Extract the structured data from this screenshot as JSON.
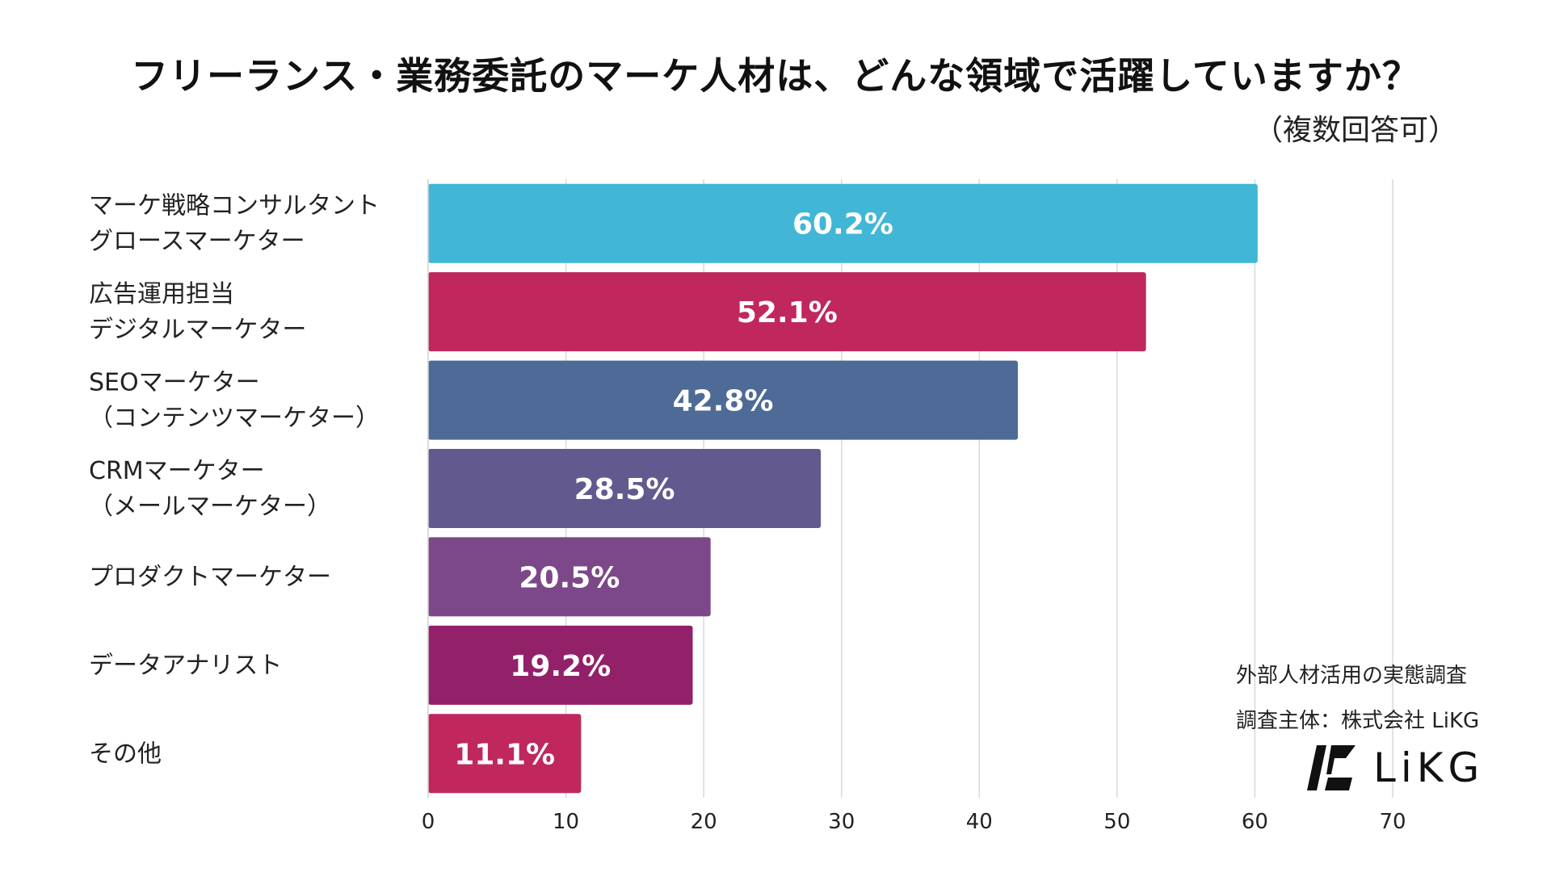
{
  "header": {
    "title": "フリーランス・業務委託のマーケ人材は、どんな領域で活躍していますか？",
    "subtitle": "（複数回答可）"
  },
  "source": {
    "line1": "外部人材活用の実態調査",
    "line2": "調査主体：株式会社 LiKG",
    "logo_text": "LiKG"
  },
  "chart_data": {
    "type": "bar",
    "orientation": "horizontal",
    "title": "フリーランス・業務委託のマーケ人材は、どんな領域で活躍していますか？",
    "subtitle": "（複数回答可）",
    "categories": [
      [
        "マーケ戦略コンサルタント",
        "グロースマーケター"
      ],
      [
        "広告運用担当",
        "デジタルマーケター"
      ],
      [
        "SEOマーケター",
        "（コンテンツマーケター）"
      ],
      [
        "CRMマーケター",
        "（メールマーケター）"
      ],
      [
        "プロダクトマーケター"
      ],
      [
        "データアナリスト"
      ],
      [
        "その他"
      ]
    ],
    "values": [
      60.2,
      52.1,
      42.8,
      28.5,
      20.5,
      19.2,
      11.1
    ],
    "value_labels": [
      "60.2%",
      "52.1%",
      "42.8%",
      "28.5%",
      "20.5%",
      "19.2%",
      "11.1%"
    ],
    "colors": [
      "#41b6d6",
      "#c0275d",
      "#4e6b97",
      "#625a8f",
      "#7c4889",
      "#922169",
      "#c0275d"
    ],
    "xlim": [
      0,
      70
    ],
    "xticks": [
      0,
      10,
      20,
      30,
      40,
      50,
      60,
      70
    ],
    "xlabel": "",
    "ylabel": "",
    "grid": true
  }
}
